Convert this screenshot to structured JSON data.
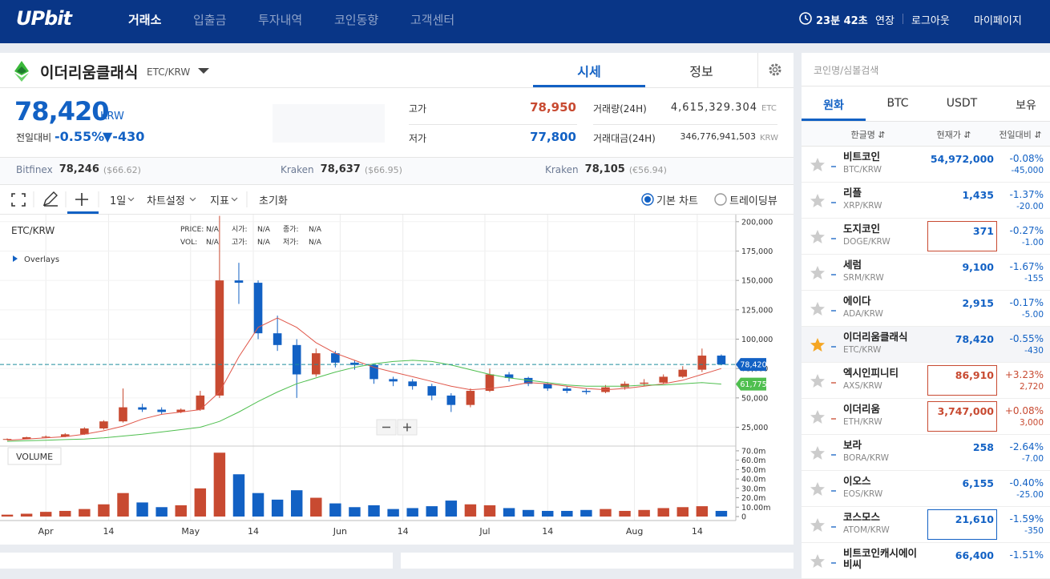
{
  "nav": {
    "logo": "UPbit",
    "items": [
      "거래소",
      "입출금",
      "투자내역",
      "코인동향",
      "고객센터"
    ],
    "timer": "23분 42초",
    "extend": "연장",
    "logout": "로그아웃",
    "mypage": "마이페이지"
  },
  "coin": {
    "name": "이더리움클래식",
    "symbol": "ETC/KRW",
    "tabs": [
      "시세",
      "정보"
    ],
    "price": "78,420",
    "currency": "KRW",
    "change_label": "전일대비",
    "change_rate": "-0.55%",
    "change_amount": "▼-430"
  },
  "stats": [
    {
      "label": "고가",
      "value": "78,950",
      "color": "#c84a31"
    },
    {
      "label": "저가",
      "value": "77,800",
      "color": "#1261c4"
    },
    {
      "label": "거래량(24H)",
      "value": "4,615,329.304",
      "unit": "ETC"
    },
    {
      "label": "거래대금(24H)",
      "value": "346,776,941,503",
      "unit": "KRW"
    }
  ],
  "exchanges": [
    {
      "name": "Bitfinex",
      "price": "78,246",
      "ref": "($66.62)"
    },
    {
      "name": "Kraken",
      "price": "78,637",
      "ref": "($66.95)"
    },
    {
      "name": "Kraken",
      "price": "78,105",
      "ref": "(€56.94)"
    }
  ],
  "toolbar": {
    "interval": "1일",
    "settings": "차트설정",
    "indicators": "지표",
    "reset": "초기화",
    "basic": "기본 차트",
    "tradingview": "트레이딩뷰"
  },
  "chart_data": {
    "type": "candlestick",
    "title": "ETC/KRW",
    "overlays": "Overlays",
    "volume_title": "VOLUME",
    "legend": [
      [
        "PRICE:",
        "N/A"
      ],
      [
        "시가:",
        "N/A"
      ],
      [
        "종가:",
        "N/A"
      ],
      [
        "VOL:",
        "N/A"
      ],
      [
        "고가:",
        "N/A"
      ],
      [
        "저가:",
        "N/A"
      ]
    ],
    "open": [
      14500,
      15000,
      16500,
      17000,
      19000,
      24000,
      30000,
      42000,
      40000,
      38000,
      40000,
      52000,
      150000,
      148000,
      105000,
      95000,
      70000,
      88000,
      80000,
      78000,
      66000,
      64000,
      60000,
      52000,
      44000,
      56000,
      70000,
      67000,
      62000,
      58000,
      56000,
      55000,
      59000,
      62000,
      63000,
      68000,
      74000,
      86000
    ],
    "high": [
      15500,
      17000,
      18000,
      20000,
      25000,
      31000,
      58000,
      45000,
      42000,
      41000,
      56000,
      205000,
      165000,
      150000,
      120000,
      100000,
      92000,
      90000,
      82000,
      79000,
      68000,
      66000,
      62000,
      54000,
      58000,
      75000,
      72000,
      68000,
      63000,
      60000,
      58000,
      61000,
      64000,
      66000,
      70000,
      77000,
      92000,
      87000
    ],
    "low": [
      14000,
      14800,
      16000,
      16500,
      18500,
      23000,
      29000,
      38000,
      36000,
      37000,
      39000,
      50000,
      130000,
      100000,
      90000,
      50000,
      68000,
      76000,
      74000,
      62000,
      60000,
      57000,
      48000,
      38000,
      42000,
      55000,
      64000,
      60000,
      56000,
      54000,
      53000,
      54000,
      57000,
      60000,
      62000,
      67000,
      72000,
      77800
    ],
    "close": [
      15000,
      16500,
      17000,
      19000,
      24000,
      30000,
      42000,
      40000,
      38000,
      40000,
      52000,
      150000,
      148000,
      105000,
      95000,
      70000,
      88000,
      80000,
      78000,
      66000,
      64000,
      60000,
      52000,
      44000,
      56000,
      70000,
      67000,
      62000,
      58000,
      56000,
      55000,
      59000,
      62000,
      63000,
      68000,
      74000,
      86000,
      78420
    ],
    "volume": [
      2000000,
      3000000,
      5000000,
      6000000,
      8000000,
      13000000,
      25000000,
      15000000,
      10000000,
      12000000,
      30000000,
      68000000,
      45000000,
      25000000,
      18000000,
      28000000,
      20000000,
      14000000,
      10000000,
      12000000,
      8000000,
      9000000,
      11000000,
      17000000,
      13000000,
      12000000,
      9000000,
      7000000,
      6000000,
      6000000,
      7000000,
      8000000,
      6000000,
      7000000,
      9000000,
      10000000,
      11000000,
      6000000
    ],
    "up_color": "#c84a31",
    "down_color": "#1261c4",
    "ma": [
      {
        "color": "#e0574a",
        "values": [
          14000,
          15000,
          16000,
          17000,
          19000,
          22000,
          26000,
          32000,
          36000,
          38000,
          40000,
          55000,
          85000,
          110000,
          118000,
          110000,
          97000,
          88000,
          82000,
          76000,
          72000,
          68000,
          64000,
          60000,
          57000,
          58000,
          60000,
          63000,
          62000,
          60000,
          58000,
          57000,
          58000,
          60000,
          62000,
          65000,
          70000,
          75000
        ]
      },
      {
        "color": "#4fbf4f",
        "values": [
          13000,
          13500,
          14000,
          14500,
          15000,
          16000,
          17500,
          19000,
          21000,
          23000,
          25000,
          30000,
          38000,
          47000,
          55000,
          62000,
          67000,
          72000,
          76000,
          79000,
          81000,
          82000,
          81000,
          78000,
          74000,
          70000,
          67000,
          65000,
          63000,
          61000,
          60000,
          60000,
          60000,
          61000,
          61000,
          62000,
          63000,
          61775
        ]
      }
    ],
    "xlim": [
      -0.375,
      37.75
    ],
    "xticks": [
      {
        "value": 2,
        "label": "Apr"
      },
      {
        "value": 5.25,
        "label": "14"
      },
      {
        "value": 9.5,
        "label": "May"
      },
      {
        "value": 12.75,
        "label": "14"
      },
      {
        "value": 17.25,
        "label": "Jun"
      },
      {
        "value": 20.5,
        "label": "14"
      },
      {
        "value": 24.75,
        "label": "Jul"
      },
      {
        "value": 28,
        "label": "14"
      },
      {
        "value": 32.5,
        "label": "Aug"
      },
      {
        "value": 35.75,
        "label": "14"
      }
    ],
    "ylim": [
      9000,
      206000
    ],
    "yticks": [
      {
        "value": 25000,
        "label": "25,000"
      },
      {
        "value": 50000,
        "label": "50,000"
      },
      {
        "value": 75000,
        "label": "75,000"
      },
      {
        "value": 100000,
        "label": "100,000"
      },
      {
        "value": 125000,
        "label": "125,000"
      },
      {
        "value": 150000,
        "label": "150,000"
      },
      {
        "value": 175000,
        "label": "175,000"
      },
      {
        "value": 200000,
        "label": "200,000"
      }
    ],
    "volume_ylim": [
      0,
      72500000
    ],
    "volume_ticks": [
      0,
      {
        "value": 10000000,
        "label": "10.00m"
      },
      {
        "value": 20000000,
        "label": "20.0m"
      },
      {
        "value": 30000000,
        "label": "30.0m"
      },
      {
        "value": 40000000,
        "label": "40.0m"
      },
      {
        "value": 50000000,
        "label": "50.0m"
      },
      {
        "value": 60000000,
        "label": "60.0m"
      },
      {
        "value": 70000000,
        "label": "70.0m"
      }
    ],
    "grid": true,
    "price_line": {
      "value": 78420,
      "label": "78,420",
      "color": "#1e8c9c"
    },
    "ma_label": {
      "value": 61775,
      "label": "61,775"
    }
  },
  "market": {
    "search": "코인명/심볼검색",
    "tabs": [
      "원화",
      "BTC",
      "USDT",
      "보유"
    ],
    "headers": [
      "한글명 ⇵",
      "현재가 ⇵",
      "전일대비 ⇵"
    ],
    "rows": [
      {
        "name": "비트코인",
        "symbol": "BTC/KRW",
        "price": "54,972,000",
        "rate": "-0.08%",
        "amount": "-45,000",
        "color": "#1261c4"
      },
      {
        "name": "리플",
        "symbol": "XRP/KRW",
        "price": "1,435",
        "rate": "-1.37%",
        "amount": "-20.00",
        "color": "#1261c4"
      },
      {
        "name": "도지코인",
        "symbol": "DOGE/KRW",
        "price": "371",
        "rate": "-0.27%",
        "amount": "-1.00",
        "color": "#1261c4",
        "box": "#c84a31"
      },
      {
        "name": "세럼",
        "symbol": "SRM/KRW",
        "price": "9,100",
        "rate": "-1.67%",
        "amount": "-155",
        "color": "#1261c4"
      },
      {
        "name": "에이다",
        "symbol": "ADA/KRW",
        "price": "2,915",
        "rate": "-0.17%",
        "amount": "-5.00",
        "color": "#1261c4"
      },
      {
        "name": "이더리움클래식",
        "symbol": "ETC/KRW",
        "price": "78,420",
        "rate": "-0.55%",
        "amount": "-430",
        "color": "#1261c4",
        "star": "#f5a623",
        "highlight": true
      },
      {
        "name": "엑시인피니티",
        "symbol": "AXS/KRW",
        "price": "86,910",
        "rate": "+3.23%",
        "amount": "2,720",
        "color": "#c84a31",
        "box": "#c84a31"
      },
      {
        "name": "이더리움",
        "symbol": "ETH/KRW",
        "price": "3,747,000",
        "rate": "+0.08%",
        "amount": "3,000",
        "color": "#c84a31",
        "box": "#c84a31"
      },
      {
        "name": "보라",
        "symbol": "BORA/KRW",
        "price": "258",
        "rate": "-2.64%",
        "amount": "-7.00",
        "color": "#1261c4"
      },
      {
        "name": "이오스",
        "symbol": "EOS/KRW",
        "price": "6,155",
        "rate": "-0.40%",
        "amount": "-25.00",
        "color": "#1261c4"
      },
      {
        "name": "코스모스",
        "symbol": "ATOM/KRW",
        "price": "21,610",
        "rate": "-1.59%",
        "amount": "-350",
        "color": "#1261c4",
        "box": "#1261c4"
      },
      {
        "name": "비트코인캐시에이비씨",
        "price": "66,400",
        "rate": "-1.51%",
        "color": "#1261c4"
      }
    ]
  }
}
